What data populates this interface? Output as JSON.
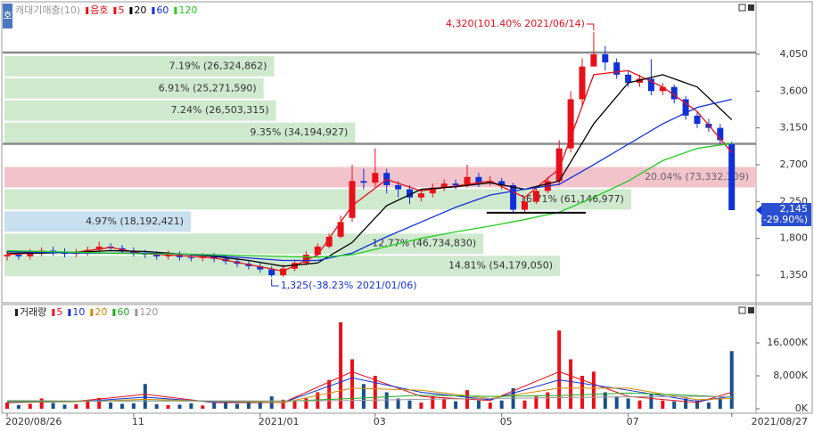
{
  "chart_data": {
    "type": "candlestick",
    "legend_prefix": [
      "캐대기매출(10)",
      "음호"
    ],
    "categories": [
      "2020/08/26",
      null,
      null,
      null,
      null,
      null,
      null,
      null,
      null,
      null,
      null,
      "11",
      null,
      null,
      null,
      null,
      null,
      null,
      null,
      null,
      null,
      null,
      "2021/01",
      null,
      null,
      null,
      null,
      null,
      null,
      null,
      null,
      null,
      "03",
      null,
      null,
      null,
      null,
      null,
      null,
      null,
      null,
      null,
      null,
      "05",
      null,
      null,
      null,
      null,
      null,
      null,
      null,
      null,
      null,
      null,
      "07",
      null,
      null,
      null,
      null,
      null,
      null,
      null,
      null,
      "2021/08/27"
    ],
    "opens": [
      1580,
      1600,
      1580,
      1620,
      1650,
      1640,
      1610,
      1630,
      1660,
      1700,
      1680,
      1650,
      1620,
      1600,
      1580,
      1600,
      1570,
      1560,
      1580,
      1550,
      1520,
      1490,
      1460,
      1420,
      1350,
      1430,
      1500,
      1600,
      1700,
      1820,
      2050,
      2500,
      2480,
      2600,
      2450,
      2400,
      2300,
      2350,
      2420,
      2470,
      2450,
      2550,
      2480,
      2500,
      2450,
      2150,
      2250,
      2380,
      2500,
      2900,
      3500,
      3900,
      4050,
      3950,
      3800,
      3700,
      3750,
      3600,
      3650,
      3500,
      3300,
      3200,
      3150,
      2950
    ],
    "highs": [
      1650,
      1640,
      1670,
      1690,
      1700,
      1680,
      1670,
      1700,
      1760,
      1740,
      1720,
      1690,
      1660,
      1640,
      1650,
      1640,
      1610,
      1620,
      1620,
      1590,
      1560,
      1530,
      1500,
      1460,
      1480,
      1540,
      1640,
      1740,
      1860,
      2080,
      2700,
      2650,
      2900,
      2650,
      2500,
      2450,
      2400,
      2470,
      2520,
      2520,
      2700,
      2600,
      2560,
      2540,
      2480,
      2300,
      2420,
      2550,
      3000,
      3600,
      4000,
      4320,
      4150,
      4000,
      3850,
      3800,
      3990,
      3700,
      3680,
      3540,
      3350,
      3260,
      3200,
      2980
    ],
    "lows": [
      1530,
      1540,
      1540,
      1580,
      1590,
      1570,
      1570,
      1590,
      1620,
      1640,
      1610,
      1580,
      1560,
      1540,
      1540,
      1530,
      1520,
      1520,
      1510,
      1480,
      1450,
      1420,
      1380,
      1325,
      1330,
      1400,
      1470,
      1570,
      1680,
      1800,
      2000,
      2400,
      2430,
      2350,
      2300,
      2220,
      2250,
      2300,
      2380,
      2400,
      2420,
      2430,
      2440,
      2400,
      2100,
      2120,
      2220,
      2350,
      2450,
      2850,
      3400,
      3950,
      3850,
      3750,
      3650,
      3650,
      3550,
      3550,
      3450,
      3250,
      3150,
      3100,
      2950,
      2145
    ],
    "closes": [
      1600,
      1580,
      1620,
      1650,
      1640,
      1610,
      1630,
      1660,
      1700,
      1680,
      1650,
      1620,
      1600,
      1580,
      1600,
      1570,
      1560,
      1580,
      1550,
      1520,
      1490,
      1460,
      1420,
      1350,
      1430,
      1500,
      1600,
      1700,
      1820,
      2000,
      2500,
      2480,
      2600,
      2450,
      2400,
      2300,
      2350,
      2420,
      2470,
      2450,
      2550,
      2480,
      2500,
      2450,
      2150,
      2250,
      2380,
      2500,
      2900,
      3500,
      3900,
      4050,
      3950,
      3800,
      3700,
      3750,
      3600,
      3650,
      3500,
      3300,
      3200,
      3150,
      3000,
      2145
    ],
    "up_color": "#e8101a",
    "down_color": "#1030d8",
    "ylim": [
      1035,
      4495
    ],
    "yticks": [
      {
        "value": 1350,
        "label": "1,350"
      },
      {
        "value": 1800,
        "label": "1,800"
      },
      {
        "value": 2250,
        "label": "2,250"
      },
      {
        "value": 2700,
        "label": "2,700"
      },
      {
        "value": 3150,
        "label": "3,150"
      },
      {
        "value": 3600,
        "label": "3,600"
      },
      {
        "value": 4050,
        "label": "4,050"
      }
    ],
    "grid": false,
    "ma": {
      "x": [
        0,
        3,
        6,
        9,
        12,
        15,
        18,
        21,
        24,
        27,
        30,
        33,
        36,
        39,
        42,
        45,
        48,
        51,
        54,
        57,
        60,
        63
      ],
      "series": [
        {
          "name": "5",
          "color": "#e8101a",
          "values": [
            1600,
            1630,
            1630,
            1690,
            1610,
            1590,
            1560,
            1480,
            1400,
            1600,
            2200,
            2520,
            2380,
            2440,
            2500,
            2300,
            2650,
            3800,
            3850,
            3650,
            3350,
            2850
          ]
        },
        {
          "name": "20",
          "color": "#000000",
          "values": [
            1620,
            1620,
            1630,
            1650,
            1640,
            1610,
            1580,
            1530,
            1460,
            1500,
            1750,
            2200,
            2400,
            2430,
            2480,
            2400,
            2500,
            3200,
            3700,
            3800,
            3650,
            3250
          ]
        },
        {
          "name": "60",
          "color": "#1030d8",
          "values": [
            1640,
            1630,
            1620,
            1620,
            1620,
            1610,
            1590,
            1560,
            1530,
            1530,
            1620,
            1820,
            2000,
            2180,
            2330,
            2400,
            2460,
            2700,
            2950,
            3200,
            3400,
            3500
          ]
        },
        {
          "name": "120",
          "color": "#22cc22",
          "values": [
            1650,
            1640,
            1630,
            1620,
            1610,
            1610,
            1600,
            1590,
            1580,
            1570,
            1600,
            1700,
            1800,
            1880,
            1950,
            2030,
            2120,
            2300,
            2500,
            2750,
            2900,
            2960
          ]
        }
      ]
    },
    "profile": {
      "bins": [
        1328,
        1599,
        1870,
        2141,
        2412,
        2684,
        2955,
        3226,
        3497,
        3768,
        4039
      ],
      "values": [
        14.81,
        12.77,
        4.97,
        16.71,
        20.04,
        0,
        9.35,
        7.24,
        6.91,
        7.19
      ],
      "value_labels": [
        "14.81% (54,179,050)",
        "12.77% (46,734,830)",
        "4.97% (18,192,421)",
        "16.71% (61,146,977)",
        "20.04% (73,332,309)",
        null,
        "9.35% (34,194,927)",
        "7.24% (26,503,315)",
        "6.91% (25,271,590)",
        "7.19% (26,324,862)"
      ],
      "colors": [
        "#cfe9cf",
        "#cfe9cf",
        "#c8dff0",
        "#cfe9cf",
        "#f2c3cb",
        "#cfe9cf",
        "#cfe9cf",
        "#cfe9cf",
        "#cfe9cf",
        "#cfe9cf"
      ]
    },
    "hlines": [
      4070,
      2955
    ],
    "support_line": 2113,
    "high_annotation": {
      "value": 4320,
      "label": "4,320(101.40% 2021/06/14)"
    },
    "low_annotation": {
      "value": 1325,
      "label": "1,325(-38.23% 2021/01/06)"
    },
    "current_price": {
      "value": 2145,
      "label": "2,145",
      "change_label": "(-29.90%)"
    },
    "volume": {
      "title": "거래량",
      "values": [
        1500,
        900,
        1200,
        2500,
        1400,
        1000,
        1100,
        1800,
        2600,
        1500,
        1200,
        1300,
        6000,
        1100,
        900,
        1000,
        1300,
        800,
        1400,
        1600,
        1200,
        1500,
        1700,
        3000,
        2200,
        1800,
        2500,
        4000,
        7000,
        21000,
        12000,
        6000,
        8000,
        4000,
        2500,
        2000,
        1500,
        3000,
        2500,
        1800,
        4500,
        2000,
        1500,
        2000,
        5000,
        2000,
        3000,
        4000,
        19000,
        12000,
        8000,
        9000,
        4000,
        3000,
        2500,
        2000,
        3500,
        2000,
        1800,
        2500,
        2000,
        1500,
        2500,
        14000
      ],
      "ylim": [
        0,
        23570
      ],
      "yticks": [
        {
          "value": 0,
          "label": "0K"
        },
        {
          "value": 8000,
          "label": "8,000K"
        },
        {
          "value": 16000,
          "label": "16,000K"
        }
      ],
      "ma": {
        "x": [
          0,
          6,
          12,
          18,
          24,
          30,
          36,
          42,
          48,
          54,
          60,
          63
        ],
        "series": [
          {
            "name": "5",
            "color": "#e8101a",
            "values": [
              1500,
              1800,
              3500,
              1500,
              1500,
              9000,
              3000,
              2000,
              9000,
              3000,
              1500,
              4000
            ]
          },
          {
            "name": "10",
            "color": "#1030d8",
            "values": [
              1600,
              1700,
              2800,
              1600,
              1500,
              7500,
              4000,
              2200,
              7000,
              4500,
              1800,
              3000
            ]
          },
          {
            "name": "20",
            "color": "#d08a00",
            "values": [
              1700,
              1700,
              2300,
              1800,
              1500,
              5000,
              4500,
              2500,
              5000,
              5000,
              2200,
              2500
            ]
          },
          {
            "name": "60",
            "color": "#22aa22",
            "values": [
              1800,
              1800,
              1900,
              1900,
              1800,
              2500,
              3300,
              3000,
              3200,
              3800,
              3200,
              2800
            ]
          },
          {
            "name": "120",
            "color": "#999999",
            "values": [
              2000,
              1900,
              1900,
              1900,
              1900,
              2000,
              2300,
              2500,
              2700,
              2900,
              3000,
              2900
            ]
          }
        ]
      }
    }
  }
}
